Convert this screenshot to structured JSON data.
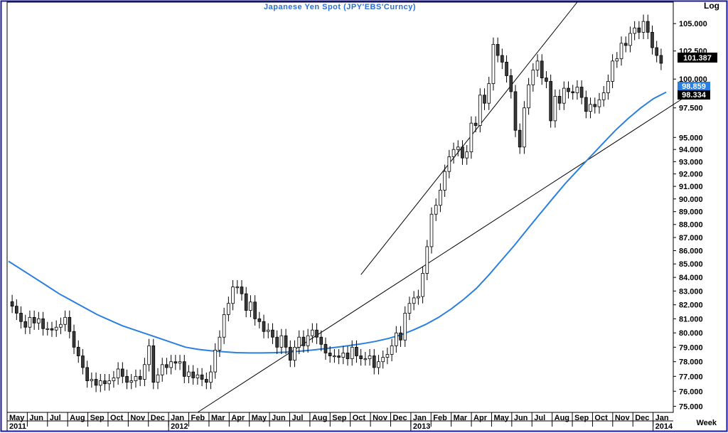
{
  "chart_data": {
    "type": "candlestick",
    "title": "Japanese Yen Spot (JPY'EBS'Curncy)",
    "scale_label": "Log",
    "period_label": "Week",
    "y_scale": "log",
    "ylim": [
      74.6,
      107.0
    ],
    "y_ticks": [
      "105.000",
      "102.500",
      "100.000",
      "97.500",
      "95.000",
      "94.000",
      "93.000",
      "92.000",
      "91.000",
      "90.000",
      "89.000",
      "88.000",
      "87.000",
      "86.000",
      "85.000",
      "84.000",
      "83.000",
      "82.000",
      "81.000",
      "80.000",
      "79.000",
      "78.000",
      "77.000",
      "76.000",
      "75.000"
    ],
    "last_price_label": "101.387",
    "ma_value_label": "98.859",
    "channel_value_label": "98.334",
    "x_months": [
      "May",
      "Jun",
      "Jul",
      "Aug",
      "Sep",
      "Oct",
      "Nov",
      "Dec",
      "Jan",
      "Feb",
      "Mar",
      "Apr",
      "May",
      "Jun",
      "Jul",
      "Aug",
      "Sep",
      "Oct",
      "Nov",
      "Dec",
      "Jan",
      "Feb",
      "Mar",
      "Apr",
      "May",
      "Jun",
      "Jul",
      "Aug",
      "Sep",
      "Oct",
      "Nov",
      "Dec",
      "Jan"
    ],
    "x_years": [
      "2011",
      "2012",
      "2013",
      "2014"
    ],
    "week_closes": [
      81.9,
      81.4,
      80.8,
      80.4,
      81.1,
      80.7,
      81.0,
      80.3,
      80.3,
      80.2,
      80.4,
      80.6,
      81.1,
      80.1,
      79.0,
      78.4,
      77.6,
      76.7,
      76.8,
      76.4,
      76.7,
      76.5,
      76.7,
      76.9,
      77.5,
      77.0,
      76.6,
      76.7,
      77.0,
      76.8,
      77.8,
      79.1,
      76.6,
      77.1,
      77.8,
      77.6,
      78.0,
      77.9,
      78.0,
      77.0,
      77.3,
      76.9,
      77.1,
      76.8,
      76.6,
      77.3,
      78.8,
      79.7,
      81.3,
      82.1,
      83.3,
      83.3,
      82.8,
      81.6,
      82.2,
      81.0,
      80.8,
      80.1,
      80.2,
      79.7,
      79.0,
      79.8,
      79.0,
      78.1,
      79.0,
      79.7,
      79.1,
      79.8,
      80.2,
      79.7,
      79.2,
      78.6,
      78.4,
      78.4,
      78.3,
      78.6,
      78.2,
      79.0,
      78.4,
      78.2,
      78.2,
      78.4,
      77.6,
      78.0,
      78.3,
      78.5,
      79.1,
      80.0,
      79.5,
      81.4,
      82.1,
      82.5,
      82.6,
      84.3,
      86.3,
      88.8,
      89.5,
      90.7,
      92.2,
      93.4,
      94.0,
      94.2,
      93.3,
      93.8,
      96.2,
      96.0,
      98.6,
      97.9,
      99.6,
      103.1,
      102.1,
      101.5,
      100.3,
      98.9,
      95.6,
      94.2,
      97.5,
      99.5,
      100.8,
      101.6,
      100.1,
      99.8,
      96.4,
      98.5,
      97.9,
      99.2,
      98.9,
      98.8,
      99.3,
      98.4,
      97.2,
      97.8,
      97.6,
      98.2,
      98.8,
      99.8,
      101.6,
      101.8,
      103.2,
      103.0,
      104.1,
      104.6,
      104.2,
      105.2,
      104.2,
      102.8,
      102.1,
      101.4
    ],
    "ma_series": [
      85.2,
      84.6,
      84.0,
      83.4,
      82.8,
      82.3,
      81.8,
      81.3,
      80.9,
      80.5,
      80.2,
      79.9,
      79.6,
      79.3,
      79.0,
      78.85,
      78.75,
      78.68,
      78.62,
      78.6,
      78.6,
      78.62,
      78.66,
      78.72,
      78.8,
      78.9,
      79.0,
      79.12,
      79.25,
      79.4,
      79.6,
      79.85,
      80.2,
      80.6,
      81.1,
      81.7,
      82.4,
      83.2,
      84.2,
      85.3,
      86.4,
      87.6,
      88.8,
      90.0,
      91.2,
      92.3,
      93.4,
      94.5,
      95.6,
      96.6,
      97.5,
      98.3,
      98.859
    ],
    "channel": {
      "upper_start": [
        79.0,
        84.2
      ],
      "upper_end": [
        128.0,
        107.0
      ],
      "lower_start": [
        42.0,
        74.6
      ],
      "lower_end": [
        152.0,
        98.334
      ]
    }
  }
}
